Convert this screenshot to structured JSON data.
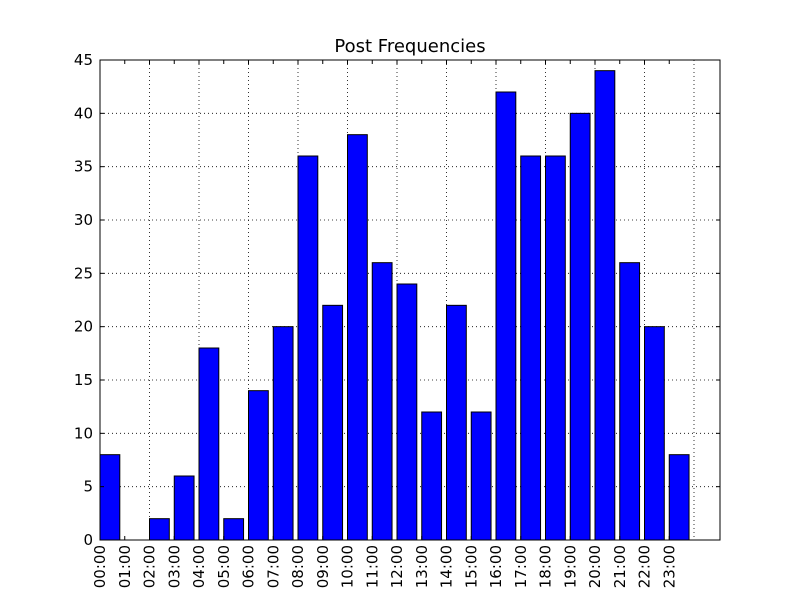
{
  "chart_data": {
    "type": "bar",
    "title": "Post Frequencies",
    "xlabel": "",
    "ylabel": "",
    "categories": [
      "00:00",
      "01:00",
      "02:00",
      "03:00",
      "04:00",
      "05:00",
      "06:00",
      "07:00",
      "08:00",
      "09:00",
      "10:00",
      "11:00",
      "12:00",
      "13:00",
      "14:00",
      "15:00",
      "16:00",
      "17:00",
      "18:00",
      "19:00",
      "20:00",
      "21:00",
      "22:00",
      "23:00"
    ],
    "values": [
      8,
      0,
      2,
      6,
      18,
      2,
      14,
      20,
      36,
      22,
      38,
      26,
      24,
      12,
      22,
      12,
      42,
      36,
      36,
      40,
      44,
      26,
      20,
      8
    ],
    "ylim": [
      0,
      45
    ],
    "yticks": [
      0,
      5,
      10,
      15,
      20,
      25,
      30,
      35,
      40,
      45
    ],
    "grid": true,
    "x_tick_rotation": "vertical",
    "colors": {
      "bar_fill": "#0000ff",
      "bar_edge": "#000000",
      "axes": "#000000",
      "background": "#ffffff"
    }
  }
}
